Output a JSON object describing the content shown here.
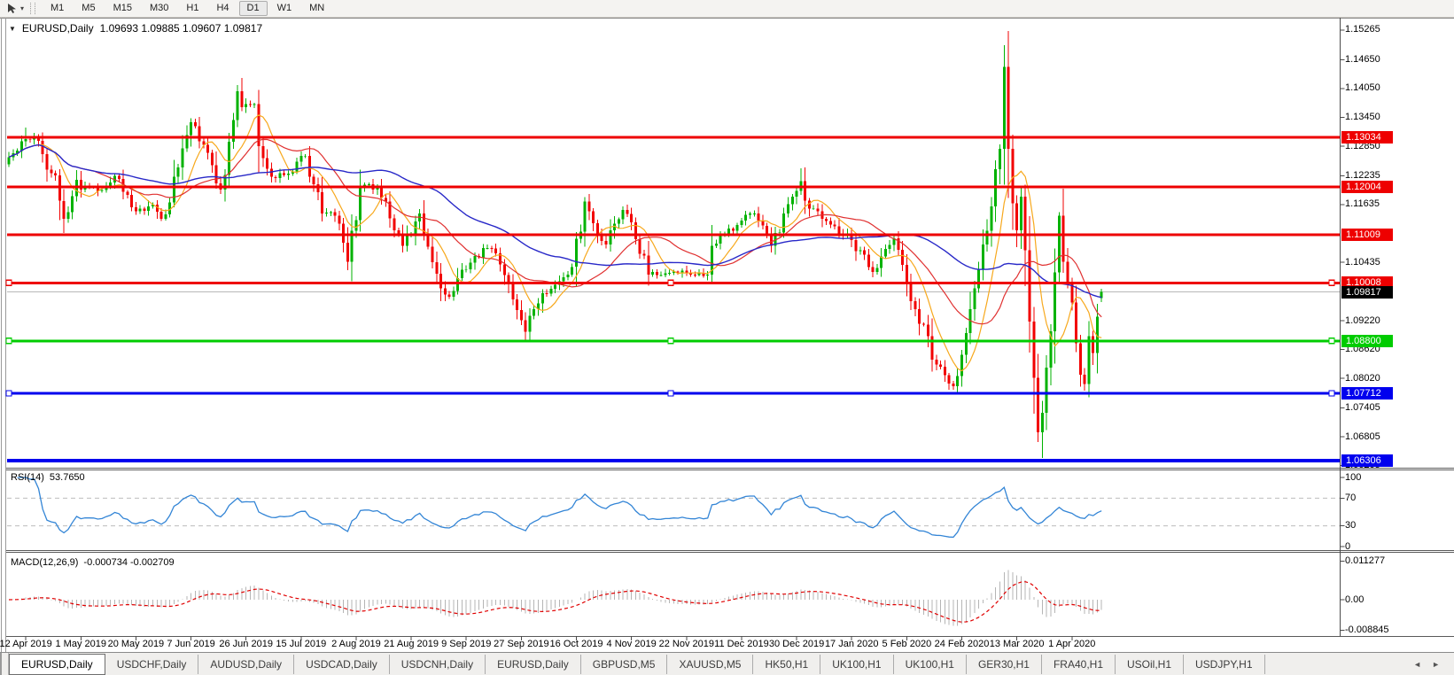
{
  "toolbar": {
    "timeframes": [
      "M1",
      "M5",
      "M15",
      "M30",
      "H1",
      "H4",
      "D1",
      "W1",
      "MN"
    ],
    "active_timeframe": "D1",
    "dropdown_icon": "▾"
  },
  "title": {
    "collapse_icon": "▼",
    "symbol": "EURUSD,Daily",
    "ohlc": "1.09693 1.09885 1.09607 1.09817"
  },
  "price_axis": {
    "ticks": [
      "1.15265",
      "1.14650",
      "1.14050",
      "1.13450",
      "1.12850",
      "1.12235",
      "1.11635",
      "1.10435",
      "1.09220",
      "1.08620",
      "1.08020",
      "1.07405",
      "1.06805",
      "1.06205"
    ],
    "badges": [
      {
        "text": "1.13034",
        "price": 1.13034,
        "bg": "#ee0000",
        "fg": "#ffffff"
      },
      {
        "text": "1.12004",
        "price": 1.12004,
        "bg": "#ee0000",
        "fg": "#ffffff"
      },
      {
        "text": "1.11009",
        "price": 1.11009,
        "bg": "#ee0000",
        "fg": "#ffffff"
      },
      {
        "text": "1.10008",
        "price": 1.10008,
        "bg": "#ee0000",
        "fg": "#ffffff"
      },
      {
        "text": "1.09817",
        "price": 1.09817,
        "bg": "#000000",
        "fg": "#ffffff"
      },
      {
        "text": "1.08800",
        "price": 1.088,
        "bg": "#00cc00",
        "fg": "#ffffff"
      },
      {
        "text": "1.07712",
        "price": 1.07712,
        "bg": "#0000ee",
        "fg": "#ffffff"
      },
      {
        "text": "1.06306",
        "price": 1.06306,
        "bg": "#0000ee",
        "fg": "#ffffff"
      }
    ]
  },
  "x_axis": {
    "labels": [
      "12 Apr 2019",
      "1 May 2019",
      "20 May 2019",
      "7 Jun 2019",
      "26 Jun 2019",
      "15 Jul 2019",
      "2 Aug 2019",
      "21 Aug 2019",
      "9 Sep 2019",
      "27 Sep 2019",
      "16 Oct 2019",
      "4 Nov 2019",
      "22 Nov 2019",
      "11 Dec 2019",
      "30 Dec 2019",
      "17 Jan 2020",
      "5 Feb 2020",
      "24 Feb 2020",
      "13 Mar 2020",
      "1 Apr 2020"
    ],
    "first_bar_index": 4,
    "bar_step": 13
  },
  "rsi_pane": {
    "name": "RSI(14)",
    "value": "53.7650",
    "axis_labels": [
      "100",
      "70",
      "30",
      "0"
    ],
    "axis_values": [
      100,
      70,
      30,
      0
    ],
    "dashed_levels": [
      70,
      30
    ],
    "line_color": "#3385d6"
  },
  "macd_pane": {
    "name": "MACD(12,26,9)",
    "values": "-0.000734 -0.002709",
    "axis_labels": [
      "0.011277",
      "0.00",
      "-0.008845"
    ],
    "axis_values": [
      0.011277,
      0,
      -0.008845
    ],
    "histogram_color": "#b5b5b5",
    "signal_color": "#e00000"
  },
  "tabs": {
    "items": [
      "EURUSD,Daily",
      "USDCHF,Daily",
      "AUDUSD,Daily",
      "USDCAD,Daily",
      "USDCNH,Daily",
      "EURUSD,Daily",
      "GBPUSD,M5",
      "XAUUSD,M5",
      "HK50,H1",
      "UK100,H1",
      "UK100,H1",
      "GER30,H1",
      "FRA40,H1",
      "USOil,H1",
      "USDJPY,H1"
    ],
    "active_index": 0,
    "scroll_left_icon": "◄",
    "scroll_right_icon": "►"
  },
  "chart_data": {
    "type": "candlestick",
    "symbol": "EURUSD",
    "timeframe": "Daily",
    "bars": 259,
    "ylim": [
      1.0618,
      1.15486
    ],
    "x_range": [
      "8 Apr 2019",
      "10 Apr 2020"
    ],
    "bull_color": "#00b200",
    "bear_color": "#f20000",
    "current_price": 1.09817,
    "current_price_line_color": "#b9b9b9",
    "hlines": [
      {
        "price": 1.13034,
        "color": "#ee0000",
        "width": 3,
        "handles": false
      },
      {
        "price": 1.12004,
        "color": "#ee0000",
        "width": 3,
        "handles": false
      },
      {
        "price": 1.11009,
        "color": "#ee0000",
        "width": 3,
        "handles": false
      },
      {
        "price": 1.10008,
        "color": "#ee0000",
        "width": 3,
        "handles": true
      },
      {
        "price": 1.088,
        "color": "#00cc00",
        "width": 3,
        "handles": true
      },
      {
        "price": 1.07712,
        "color": "#0000ee",
        "width": 3,
        "handles": true
      },
      {
        "price": 1.06306,
        "color": "#0000ee",
        "width": 4,
        "handles": false
      }
    ],
    "moving_averages": [
      {
        "period": 8,
        "color": "#f7a81c"
      },
      {
        "period": 21,
        "color": "#e03030"
      },
      {
        "period": 50,
        "color": "#2828c8"
      }
    ],
    "close_keyframes": [
      [
        0,
        1.1262
      ],
      [
        4,
        1.13
      ],
      [
        7,
        1.1296
      ],
      [
        9,
        1.1236
      ],
      [
        11,
        1.1224
      ],
      [
        13,
        1.1134
      ],
      [
        14,
        1.1148
      ],
      [
        16,
        1.1215
      ],
      [
        17,
        1.1195
      ],
      [
        19,
        1.12
      ],
      [
        22,
        1.1194
      ],
      [
        25,
        1.1223
      ],
      [
        29,
        1.1158
      ],
      [
        32,
        1.1151
      ],
      [
        34,
        1.1163
      ],
      [
        36,
        1.1134
      ],
      [
        38,
        1.1168
      ],
      [
        40,
        1.1241
      ],
      [
        43,
        1.1335
      ],
      [
        46,
        1.1288
      ],
      [
        50,
        1.1195
      ],
      [
        52,
        1.1294
      ],
      [
        54,
        1.1399
      ],
      [
        55,
        1.1366
      ],
      [
        58,
        1.1373
      ],
      [
        59,
        1.1285
      ],
      [
        62,
        1.1221
      ],
      [
        65,
        1.1225
      ],
      [
        70,
        1.1265
      ],
      [
        74,
        1.1145
      ],
      [
        77,
        1.114
      ],
      [
        80,
        1.1045
      ],
      [
        83,
        1.12
      ],
      [
        87,
        1.12
      ],
      [
        89,
        1.117
      ],
      [
        91,
        1.111
      ],
      [
        93,
        1.1078
      ],
      [
        97,
        1.1145
      ],
      [
        98,
        1.1101
      ],
      [
        102,
        1.0989
      ],
      [
        104,
        1.0972
      ],
      [
        107,
        1.1028
      ],
      [
        109,
        1.1043
      ],
      [
        112,
        1.1073
      ],
      [
        114,
        1.1072
      ],
      [
        117,
        1.1017
      ],
      [
        120,
        1.0944
      ],
      [
        122,
        1.0899
      ],
      [
        123,
        1.0932
      ],
      [
        126,
        1.0979
      ],
      [
        130,
        1.1004
      ],
      [
        133,
        1.1034
      ],
      [
        136,
        1.117
      ],
      [
        137,
        1.115
      ],
      [
        141,
        1.108
      ],
      [
        145,
        1.1152
      ],
      [
        147,
        1.1127
      ],
      [
        151,
        1.1018
      ],
      [
        155,
        1.1021
      ],
      [
        160,
        1.1021
      ],
      [
        165,
        1.1018
      ],
      [
        166,
        1.1078
      ],
      [
        173,
        1.113
      ],
      [
        176,
        1.1145
      ],
      [
        180,
        1.1078
      ],
      [
        187,
        1.1212
      ],
      [
        188,
        1.1172
      ],
      [
        194,
        1.1122
      ],
      [
        199,
        1.109
      ],
      [
        204,
        1.1023
      ],
      [
        209,
        1.1093
      ],
      [
        212,
        1.1
      ],
      [
        214,
        1.0946
      ],
      [
        219,
        1.0831
      ],
      [
        223,
        1.0786
      ],
      [
        225,
        1.0851
      ],
      [
        229,
        1.103
      ],
      [
        232,
        1.116
      ],
      [
        234,
        1.128
      ],
      [
        235,
        1.145
      ],
      [
        236,
        1.128
      ],
      [
        238,
        1.111
      ],
      [
        239,
        1.118
      ],
      [
        241,
        1.092
      ],
      [
        243,
        1.069
      ],
      [
        244,
        1.073
      ],
      [
        246,
        1.09
      ],
      [
        248,
        1.114
      ],
      [
        249,
        1.1045
      ],
      [
        251,
        1.096
      ],
      [
        253,
        1.081
      ],
      [
        254,
        1.079
      ],
      [
        255,
        1.089
      ],
      [
        256,
        1.0855
      ],
      [
        257,
        1.093
      ],
      [
        258,
        1.09817
      ]
    ],
    "wick_overrides": [
      {
        "i": 4,
        "h": 1.1324
      },
      {
        "i": 54,
        "h": 1.1412
      },
      {
        "i": 80,
        "l": 1.1027
      },
      {
        "i": 102,
        "l": 1.0963
      },
      {
        "i": 122,
        "l": 1.0879
      },
      {
        "i": 136,
        "h": 1.1179
      },
      {
        "i": 187,
        "h": 1.1239
      },
      {
        "i": 223,
        "l": 1.0778
      },
      {
        "i": 235,
        "h": 1.1495
      },
      {
        "i": 243,
        "l": 1.067
      },
      {
        "i": 244,
        "l": 1.0636
      },
      {
        "i": 248,
        "h": 1.1148
      }
    ],
    "last_bar": {
      "o": 1.09693,
      "h": 1.09885,
      "l": 1.09607,
      "c": 1.09817
    },
    "rsi": {
      "period": 14,
      "last": 53.765
    },
    "macd": {
      "fast": 12,
      "slow": 26,
      "signal": 9,
      "last_main": -0.000734,
      "last_signal": -0.002709
    },
    "seed": 20200410
  }
}
